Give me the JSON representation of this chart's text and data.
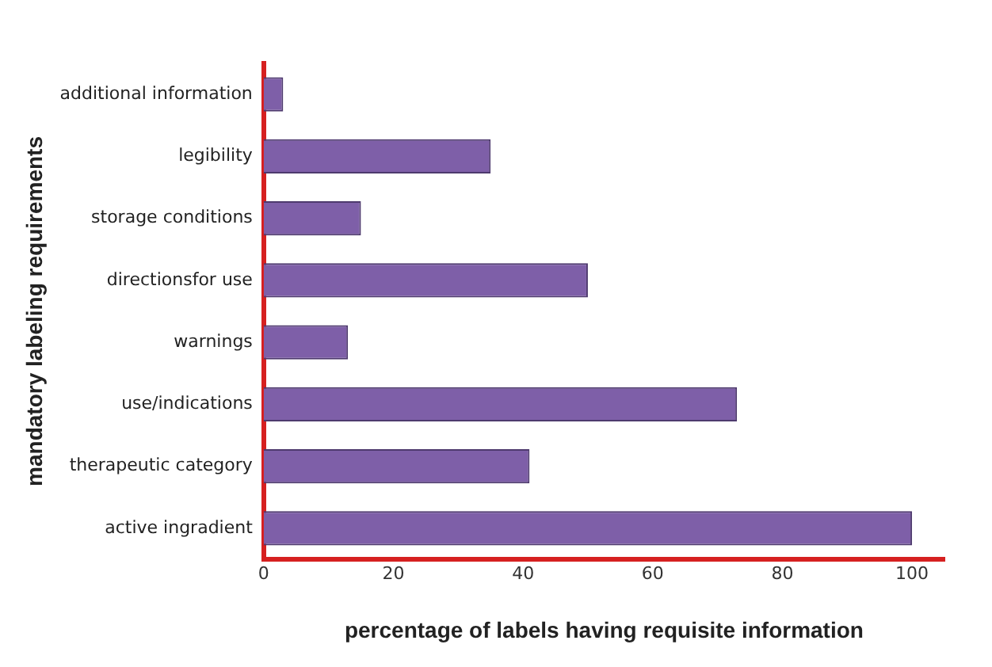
{
  "chart_data": {
    "type": "bar",
    "orientation": "horizontal",
    "xlabel": "percentage of labels having requisite information",
    "ylabel": "mandatory labeling requirements",
    "categories": [
      "additional information",
      "legibility",
      "storage conditions",
      "directionsfor use",
      "warnings",
      "use/indications",
      "therapeutic category",
      "active ingradient"
    ],
    "values": [
      3,
      35,
      15,
      50,
      13,
      73,
      41,
      100
    ],
    "color": "#7e5fa8",
    "xlim": [
      0,
      105
    ],
    "xticks": [
      0,
      20,
      40,
      60,
      80,
      100
    ],
    "grid": false,
    "legend": false
  }
}
